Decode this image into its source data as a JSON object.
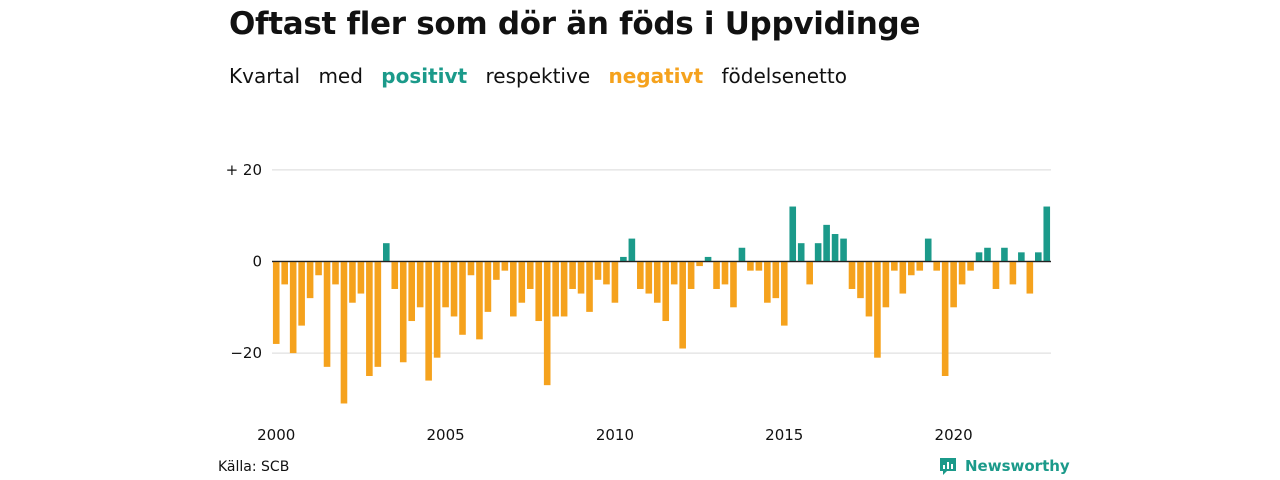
{
  "title": "Oftast fler som dör än föds i Uppvidinge",
  "subtitle": {
    "part1": "Kvartal",
    "part2": "med",
    "positive": "positivt",
    "part3": "respektive",
    "negative": "negativt",
    "part4": "födelsenetto"
  },
  "source": "Källa: SCB",
  "brand": "Newsworthy",
  "colors": {
    "positive": "#1b9a8a",
    "negative": "#f5a21d",
    "grid": "#d9d9d9"
  },
  "chart_data": {
    "type": "bar",
    "x_start": 2000,
    "x_tick_labels": [
      "2000",
      "2005",
      "2010",
      "2015",
      "2020"
    ],
    "y_tick_labels": [
      "+ 20",
      "0",
      "−20"
    ],
    "y_ticks": [
      20,
      0,
      -20
    ],
    "ylim": [
      -31,
      20
    ],
    "values": [
      -18,
      -5,
      -20,
      -14,
      -8,
      -3,
      -23,
      -5,
      -31,
      -9,
      -7,
      -25,
      -23,
      4,
      -6,
      -22,
      -13,
      -10,
      -26,
      -21,
      -10,
      -12,
      -16,
      -3,
      -17,
      -11,
      -4,
      -2,
      -12,
      -9,
      -6,
      -13,
      -27,
      -12,
      -12,
      -6,
      -7,
      -11,
      -4,
      -5,
      -9,
      1,
      5,
      -6,
      -7,
      -9,
      -13,
      -5,
      -19,
      -6,
      -1,
      1,
      -6,
      -5,
      -10,
      3,
      -2,
      -2,
      -9,
      -8,
      -14,
      12,
      4,
      -5,
      4,
      8,
      6,
      5,
      -6,
      -8,
      -12,
      -21,
      -10,
      -2,
      -7,
      -3,
      -2,
      5,
      -2,
      -25,
      -10,
      -5,
      -2,
      2,
      3,
      -6,
      3,
      -5,
      2,
      -7,
      2,
      12
    ]
  }
}
